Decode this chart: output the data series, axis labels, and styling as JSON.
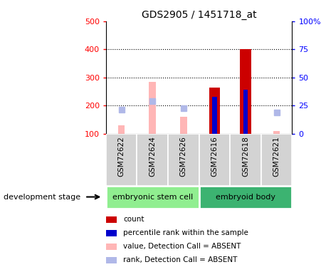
{
  "title": "GDS2905 / 1451718_at",
  "samples": [
    "GSM72622",
    "GSM72624",
    "GSM72626",
    "GSM72616",
    "GSM72618",
    "GSM72621"
  ],
  "ylim_left": [
    100,
    500
  ],
  "ylim_right": [
    0,
    100
  ],
  "yticks_left": [
    100,
    200,
    300,
    400,
    500
  ],
  "yticks_right": [
    0,
    25,
    50,
    75,
    100
  ],
  "yticklabels_right": [
    "0",
    "25",
    "50",
    "75",
    "100%"
  ],
  "bar_bottom": 100,
  "count_values": [
    null,
    null,
    null,
    265,
    400,
    null
  ],
  "rank_values": [
    null,
    null,
    null,
    230,
    255,
    null
  ],
  "absent_value_values": [
    130,
    285,
    160,
    null,
    null,
    110
  ],
  "absent_rank_values": [
    185,
    215,
    190,
    null,
    null,
    175
  ],
  "count_color": "#cc0000",
  "rank_color": "#0000cc",
  "absent_value_color": "#ffb6b6",
  "absent_rank_color": "#b0b8e8",
  "background_color": "#ffffff",
  "label_area_color": "#d3d3d3",
  "group1_color": "#90ee90",
  "group2_color": "#3cb371",
  "group1_label": "embryonic stem cell",
  "group2_label": "embryoid body",
  "development_stage_label": "development stage",
  "legend_items": [
    {
      "color": "#cc0000",
      "label": "count"
    },
    {
      "color": "#0000cc",
      "label": "percentile rank within the sample"
    },
    {
      "color": "#ffb6b6",
      "label": "value, Detection Call = ABSENT"
    },
    {
      "color": "#b0b8e8",
      "label": "rank, Detection Call = ABSENT"
    }
  ],
  "bar_width": 0.35,
  "rank_bar_width": 0.15,
  "absent_bar_width": 0.22,
  "grid_lines": [
    200,
    300,
    400
  ]
}
